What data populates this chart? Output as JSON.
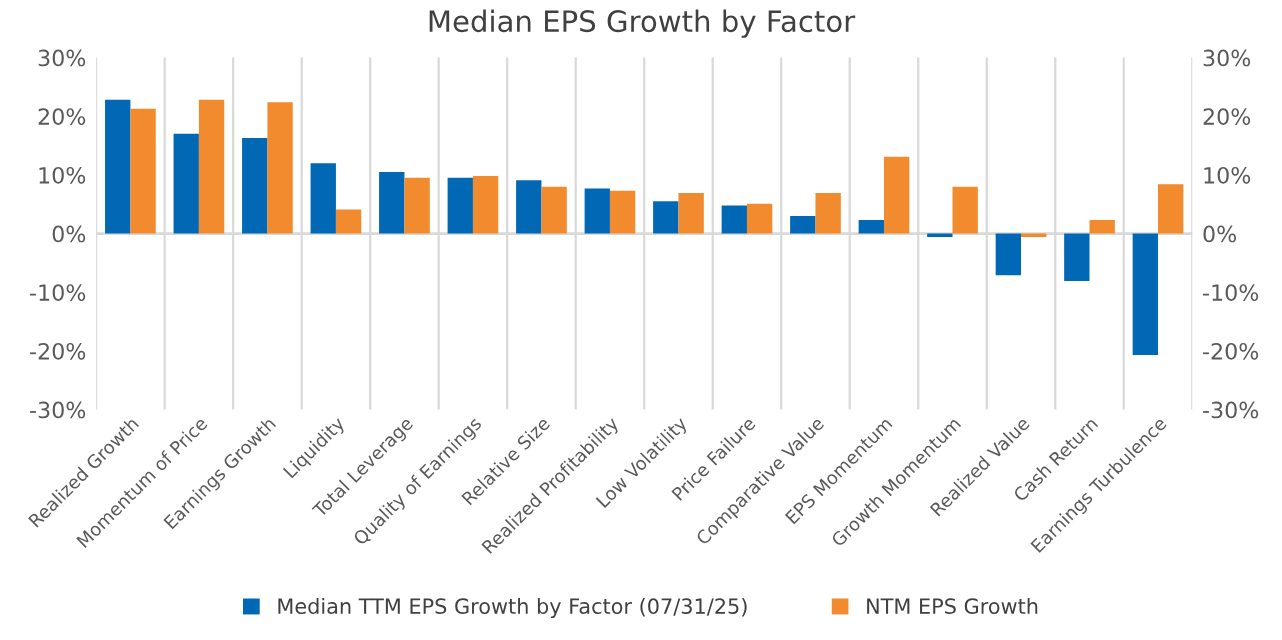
{
  "chart_data": {
    "type": "bar",
    "title": "Median EPS Growth by Factor",
    "categories": [
      "Realized Growth",
      "Momentum of Price",
      "Earnings Growth",
      "Liquidity",
      "Total Leverage",
      "Quality of Earnings",
      "Relative Size",
      "Realized Profitability",
      "Low Volatility",
      "Price Failure",
      "Comparative Value",
      "EPS Momentum",
      "Growth Momentum",
      "Realized Value",
      "Cash Return",
      "Earnings Turbulence"
    ],
    "series": [
      {
        "name": "Median TTM EPS Growth by Factor (07/31/25)",
        "color": "#0068b5",
        "values": [
          22.8,
          17.0,
          16.3,
          12.0,
          10.5,
          9.5,
          9.1,
          7.7,
          5.5,
          4.8,
          3.0,
          2.3,
          -0.6,
          -7.1,
          -8.1,
          -20.7
        ]
      },
      {
        "name": "NTM EPS Growth",
        "color": "#f28a2e",
        "values": [
          21.3,
          22.8,
          22.4,
          4.1,
          9.5,
          9.8,
          8.0,
          7.3,
          6.9,
          5.1,
          6.9,
          13.1,
          8.0,
          -0.6,
          2.3,
          8.4
        ]
      }
    ],
    "ylim": [
      -30,
      30
    ],
    "yticks": [
      {
        "value": -30,
        "label": "-30%"
      },
      {
        "value": -20,
        "label": "-20%"
      },
      {
        "value": -10,
        "label": "-10%"
      },
      {
        "value": 0,
        "label": "0%"
      },
      {
        "value": 10,
        "label": "10%"
      },
      {
        "value": 20,
        "label": "20%"
      },
      {
        "value": 30,
        "label": "30%"
      }
    ],
    "y2lim": [
      -30,
      30
    ],
    "y2ticks": [
      {
        "value": -30,
        "label": "-30%"
      },
      {
        "value": -20,
        "label": "-20%"
      },
      {
        "value": -10,
        "label": "-10%"
      },
      {
        "value": 0,
        "label": "0%"
      },
      {
        "value": 10,
        "label": "10%"
      },
      {
        "value": 20,
        "label": "20%"
      },
      {
        "value": 30,
        "label": "30%"
      }
    ],
    "grid": "x",
    "legend": "bottom"
  }
}
